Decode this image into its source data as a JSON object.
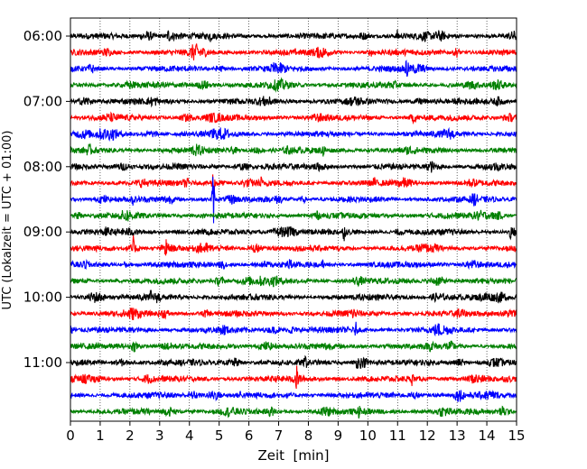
{
  "chart_data": {
    "type": "line",
    "title": "",
    "xlabel": "Zeit  [min]",
    "ylabel": "UTC (Lokalzeit = UTC + 01:00)",
    "xlim": [
      0,
      15
    ],
    "xticks": [
      0,
      1,
      2,
      3,
      4,
      5,
      6,
      7,
      8,
      9,
      10,
      11,
      12,
      13,
      14,
      15
    ],
    "xtick_labels": [
      "0",
      "1",
      "2",
      "3",
      "4",
      "5",
      "6",
      "7",
      "8",
      "9",
      "10",
      "11",
      "12",
      "13",
      "14",
      "15"
    ],
    "ytick_labels": [
      "06:00",
      "07:00",
      "08:00",
      "09:00",
      "10:00",
      "11:00"
    ],
    "grid": "vertical dotted at each minute",
    "trace_start_times": [
      "06:00",
      "06:15",
      "06:30",
      "06:45",
      "07:00",
      "07:15",
      "07:30",
      "07:45",
      "08:00",
      "08:15",
      "08:30",
      "08:45",
      "09:00",
      "09:15",
      "09:30",
      "09:45",
      "10:00",
      "10:15",
      "10:30",
      "10:45",
      "11:00",
      "11:15",
      "11:30",
      "11:45"
    ],
    "trace_colors": [
      "#000000",
      "#ff0000",
      "#0000ff",
      "#008000"
    ],
    "events": [
      {
        "trace": 0,
        "minute": 3.3,
        "amplitude": 0.35
      },
      {
        "trace": 0,
        "minute": 4.7,
        "amplitude": 0.25
      },
      {
        "trace": 0,
        "minute": 11.0,
        "amplitude": 0.3
      },
      {
        "trace": 2,
        "minute": 11.3,
        "amplitude": 0.4
      },
      {
        "trace": 6,
        "minute": 4.8,
        "amplitude": 0.3
      },
      {
        "trace": 7,
        "minute": 8.5,
        "amplitude": 0.45
      },
      {
        "trace": 9,
        "minute": 4.8,
        "amplitude": 0.55
      },
      {
        "trace": 9,
        "minute": 6.4,
        "amplitude": 0.3
      },
      {
        "trace": 9,
        "minute": 10.2,
        "amplitude": 0.3
      },
      {
        "trace": 10,
        "minute": 4.8,
        "amplitude": 1.6
      },
      {
        "trace": 10,
        "minute": 2.1,
        "amplitude": 0.3
      },
      {
        "trace": 12,
        "minute": 9.2,
        "amplitude": 0.4
      },
      {
        "trace": 12,
        "minute": 14.8,
        "amplitude": 0.3
      },
      {
        "trace": 13,
        "minute": 2.1,
        "amplitude": 0.6
      },
      {
        "trace": 13,
        "minute": 3.2,
        "amplitude": 0.45
      },
      {
        "trace": 14,
        "minute": 8.5,
        "amplitude": 0.3
      },
      {
        "trace": 16,
        "minute": 2.7,
        "amplitude": 0.25
      },
      {
        "trace": 18,
        "minute": 9.6,
        "amplitude": 0.35
      },
      {
        "trace": 20,
        "minute": 7.9,
        "amplitude": 0.35
      },
      {
        "trace": 21,
        "minute": 7.6,
        "amplitude": 0.55
      },
      {
        "trace": 21,
        "minute": 11.5,
        "amplitude": 0.35
      },
      {
        "trace": 22,
        "minute": 5.7,
        "amplitude": 0.25
      },
      {
        "trace": 23,
        "minute": 9.7,
        "amplitude": 0.25
      }
    ]
  }
}
